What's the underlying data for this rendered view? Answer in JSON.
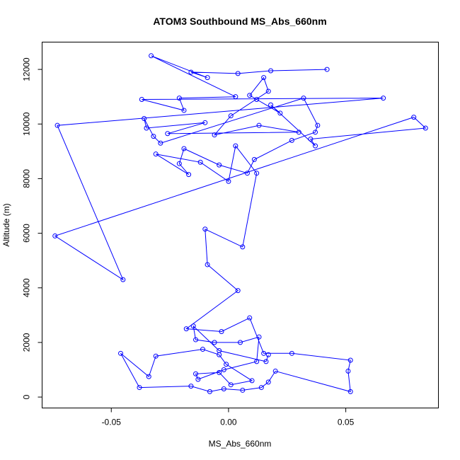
{
  "chart_data": {
    "type": "line",
    "title": "ATOM3 Southbound MS_Abs_660nm",
    "xlabel": "MS_Abs_660nm",
    "ylabel": "Altitude (m)",
    "xlim": [
      -0.0795,
      0.0895
    ],
    "ylim": [
      -400,
      13000
    ],
    "xticks": [
      -0.05,
      0.0,
      0.05
    ],
    "xtick_labels": [
      "-0.05",
      "0.00",
      "0.05"
    ],
    "yticks": [
      0,
      2000,
      4000,
      6000,
      8000,
      10000,
      12000
    ],
    "ytick_labels": [
      "0",
      "2000",
      "4000",
      "6000",
      "8000",
      "10000",
      "12000"
    ],
    "grid": false,
    "legend": "none",
    "series": [
      {
        "color": "#0000ff",
        "marker": "open-circle",
        "points": [
          [
            0.042,
            12000
          ],
          [
            0.018,
            11950
          ],
          [
            0.004,
            11850
          ],
          [
            -0.016,
            11900
          ],
          [
            -0.009,
            11700
          ],
          [
            -0.033,
            12500
          ],
          [
            0.003,
            11000
          ],
          [
            -0.021,
            10950
          ],
          [
            -0.019,
            10500
          ],
          [
            -0.037,
            10900
          ],
          [
            0.066,
            10950
          ],
          [
            -0.073,
            9950
          ],
          [
            -0.045,
            4300
          ],
          [
            -0.074,
            5900
          ],
          [
            0.079,
            10250
          ],
          [
            0.084,
            9850
          ],
          [
            0.035,
            9450
          ],
          [
            0.037,
            9200
          ],
          [
            0.018,
            10700
          ],
          [
            0.022,
            10400
          ],
          [
            0.012,
            10900
          ],
          [
            0.009,
            11050
          ],
          [
            0.015,
            11700
          ],
          [
            0.017,
            11200
          ],
          [
            0.001,
            10300
          ],
          [
            -0.006,
            9600
          ],
          [
            0.013,
            9950
          ],
          [
            0.03,
            9700
          ],
          [
            -0.026,
            9650
          ],
          [
            -0.01,
            10050
          ],
          [
            -0.035,
            9850
          ],
          [
            -0.036,
            10200
          ],
          [
            -0.032,
            9550
          ],
          [
            -0.029,
            9300
          ],
          [
            0.032,
            10950
          ],
          [
            0.038,
            9950
          ],
          [
            0.037,
            9700
          ],
          [
            0.027,
            9400
          ],
          [
            0.011,
            8700
          ],
          [
            0.008,
            8200
          ],
          [
            -0.004,
            8500
          ],
          [
            -0.019,
            9100
          ],
          [
            -0.021,
            8550
          ],
          [
            -0.017,
            8150
          ],
          [
            -0.031,
            8900
          ],
          [
            -0.012,
            8600
          ],
          [
            0.0,
            7900
          ],
          [
            0.003,
            9200
          ],
          [
            0.012,
            8200
          ],
          [
            0.006,
            5500
          ],
          [
            -0.01,
            6150
          ],
          [
            -0.009,
            4850
          ],
          [
            0.004,
            3900
          ],
          [
            -0.018,
            2500
          ],
          [
            -0.003,
            2400
          ],
          [
            0.009,
            2900
          ],
          [
            0.015,
            1600
          ],
          [
            0.027,
            1600
          ],
          [
            0.052,
            1350
          ],
          [
            0.051,
            950
          ],
          [
            0.052,
            200
          ],
          [
            0.02,
            950
          ],
          [
            0.017,
            550
          ],
          [
            0.014,
            350
          ],
          [
            0.006,
            250
          ],
          [
            -0.002,
            300
          ],
          [
            -0.008,
            200
          ],
          [
            -0.016,
            400
          ],
          [
            -0.038,
            350
          ],
          [
            -0.046,
            1600
          ],
          [
            -0.034,
            750
          ],
          [
            -0.031,
            1500
          ],
          [
            -0.011,
            1750
          ],
          [
            -0.004,
            1550
          ],
          [
            -0.001,
            1200
          ],
          [
            0.01,
            600
          ],
          [
            0.001,
            450
          ],
          [
            -0.004,
            900
          ],
          [
            -0.014,
            850
          ],
          [
            -0.013,
            650
          ],
          [
            -0.002,
            1000
          ],
          [
            0.012,
            1300
          ],
          [
            0.013,
            2200
          ],
          [
            0.005,
            2000
          ],
          [
            -0.006,
            2000
          ],
          [
            -0.014,
            2100
          ],
          [
            -0.015,
            2600
          ],
          [
            -0.004,
            1700
          ],
          [
            0.016,
            1300
          ],
          [
            0.017,
            1550
          ]
        ]
      }
    ]
  }
}
